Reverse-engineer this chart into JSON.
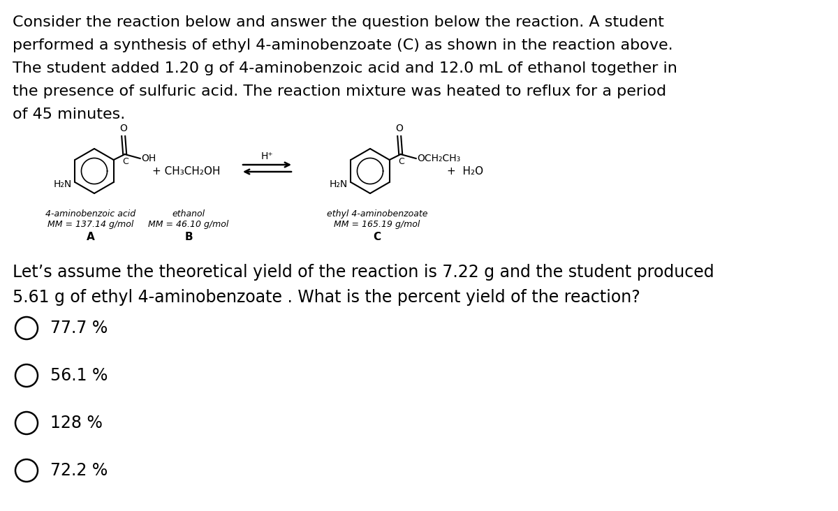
{
  "background_color": "#ffffff",
  "intro_text": "Consider the reaction below and answer the question below the reaction. A student\nperformed a synthesis of ethyl 4-aminobenzoate (C) as shown in the reaction above.\nThe student added 1.20 g of 4-aminobenzoic acid and 12.0 mL of ethanol together in\nthe presence of sulfuric acid. The reaction mixture was heated to reflux for a period\nof 45 minutes.",
  "question_text": "Let’s assume the theoretical yield of the reaction is 7.22 g and the student produced\n5.61 g of ethyl 4-aminobenzoate . What is the percent yield of the reaction?",
  "choices": [
    "77.7 %",
    "56.1 %",
    "128 %",
    "72.2 %"
  ],
  "text_color": "#000000",
  "intro_fontsize": 16,
  "question_fontsize": 17,
  "choice_fontsize": 17,
  "figsize": [
    12.0,
    7.32
  ],
  "dpi": 100
}
